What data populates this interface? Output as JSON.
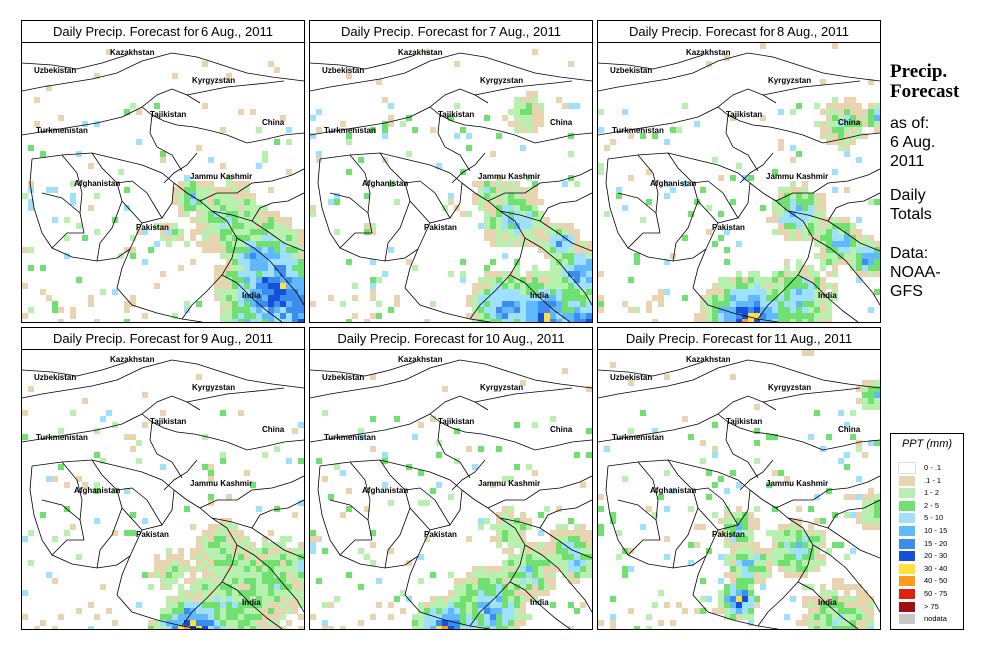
{
  "panels": [
    {
      "id": "p1",
      "title_prefix": "Daily Precip. Forecast for",
      "day": "6 Aug., 2011",
      "seed": 11,
      "blobs": [
        [
          205,
          175,
          18,
          3
        ],
        [
          240,
          215,
          22,
          5
        ],
        [
          255,
          250,
          28,
          7
        ],
        [
          290,
          270,
          20,
          8
        ],
        [
          225,
          290,
          14,
          6
        ],
        [
          170,
          155,
          9,
          4
        ],
        [
          150,
          190,
          6,
          3
        ]
      ]
    },
    {
      "id": "p2",
      "title_prefix": "Daily Precip. Forecast for",
      "day": "7 Aug., 2011",
      "seed": 23,
      "blobs": [
        [
          205,
          175,
          16,
          4
        ],
        [
          250,
          200,
          10,
          5
        ],
        [
          270,
          230,
          14,
          6
        ],
        [
          195,
          265,
          18,
          6
        ],
        [
          235,
          275,
          22,
          7
        ],
        [
          275,
          280,
          16,
          7
        ],
        [
          180,
          150,
          8,
          3
        ],
        [
          215,
          70,
          10,
          2
        ]
      ]
    },
    {
      "id": "p3",
      "title_prefix": "Daily Precip. Forecast for",
      "day": "8 Aug., 2011",
      "seed": 37,
      "blobs": [
        [
          200,
          170,
          14,
          5
        ],
        [
          240,
          200,
          12,
          5
        ],
        [
          270,
          215,
          10,
          6
        ],
        [
          150,
          280,
          24,
          8
        ],
        [
          200,
          255,
          18,
          4
        ],
        [
          245,
          80,
          12,
          3
        ],
        [
          280,
          75,
          8,
          4
        ]
      ]
    },
    {
      "id": "p4",
      "title_prefix": "Daily Precip. Forecast for",
      "day": "9 Aug., 2011",
      "seed": 49,
      "blobs": [
        [
          170,
          285,
          20,
          9
        ],
        [
          210,
          260,
          26,
          3
        ],
        [
          250,
          230,
          22,
          3
        ],
        [
          200,
          200,
          14,
          3
        ],
        [
          150,
          220,
          10,
          2
        ],
        [
          285,
          215,
          8,
          5
        ]
      ]
    },
    {
      "id": "p5",
      "title_prefix": "Daily Precip. Forecast for",
      "day": "10 Aug., 2011",
      "seed": 61,
      "blobs": [
        [
          135,
          280,
          16,
          8
        ],
        [
          180,
          260,
          20,
          5
        ],
        [
          220,
          220,
          14,
          4
        ],
        [
          260,
          200,
          12,
          4
        ],
        [
          270,
          215,
          8,
          5
        ],
        [
          200,
          180,
          10,
          3
        ]
      ]
    },
    {
      "id": "p6",
      "title_prefix": "Daily Precip. Forecast for",
      "day": "11 Aug., 2011",
      "seed": 73,
      "blobs": [
        [
          140,
          250,
          10,
          8
        ],
        [
          150,
          215,
          12,
          4
        ],
        [
          140,
          180,
          10,
          4
        ],
        [
          200,
          200,
          14,
          4
        ],
        [
          240,
          270,
          18,
          3
        ],
        [
          280,
          160,
          10,
          3
        ],
        [
          275,
          45,
          8,
          4
        ]
      ]
    }
  ],
  "map_labels": {
    "kazakhstan": "Kazakhstan",
    "uzbekistan": "Uzbekistan",
    "kyrgyzstan": "Kyrgyzstan",
    "tajikistan": "Tajikistan",
    "turkmenistan": "Turkmenistan",
    "china": "China",
    "afghanistan": "Afghanistan",
    "jammu_kashmir": "Jammu Kashmir",
    "pakistan": "Pakistan",
    "india": "India"
  },
  "side": {
    "title_line1": "Precip.",
    "title_line2": "Forecast",
    "asof_line1": "as of:",
    "asof_line2": "6 Aug.",
    "asof_line3": "2011",
    "daily_line1": "Daily",
    "daily_line2": "Totals",
    "data_line1": "Data:",
    "data_line2": "NOAA-",
    "data_line3": "GFS"
  },
  "legend": {
    "title": "PPT (mm)",
    "items": [
      {
        "label": "0 - .1",
        "color": "#ffffff"
      },
      {
        "label": ".1 - 1",
        "color": "#e8d4b0"
      },
      {
        "label": "1 - 2",
        "color": "#b8f0b0"
      },
      {
        "label": "2 - 5",
        "color": "#70e070"
      },
      {
        "label": "5 - 10",
        "color": "#a0e0ff"
      },
      {
        "label": "10 - 15",
        "color": "#60b8ff"
      },
      {
        "label": "15 - 20",
        "color": "#3c8cf0"
      },
      {
        "label": "20 - 30",
        "color": "#1450d8"
      },
      {
        "label": "30 - 40",
        "color": "#ffe040"
      },
      {
        "label": "40 - 50",
        "color": "#ff9a20"
      },
      {
        "label": "50 - 75",
        "color": "#e02010"
      },
      {
        "label": "> 75",
        "color": "#a01010"
      },
      {
        "label": "nodata",
        "color": "#c8c8c8"
      }
    ]
  }
}
